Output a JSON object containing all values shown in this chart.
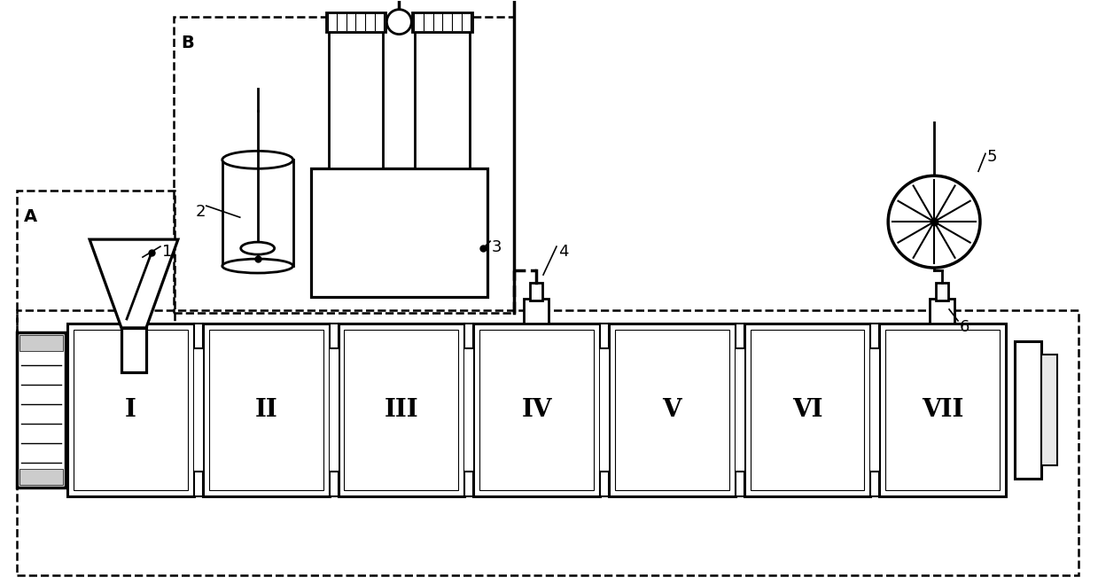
{
  "bg_color": "#ffffff",
  "line_color": "#000000",
  "lw": 2.0,
  "dlw": 1.8,
  "figsize": [
    12.39,
    6.6
  ],
  "dpi": 100,
  "roman_labels": [
    "I",
    "II",
    "III",
    "IV",
    "V",
    "VI",
    "VII"
  ]
}
